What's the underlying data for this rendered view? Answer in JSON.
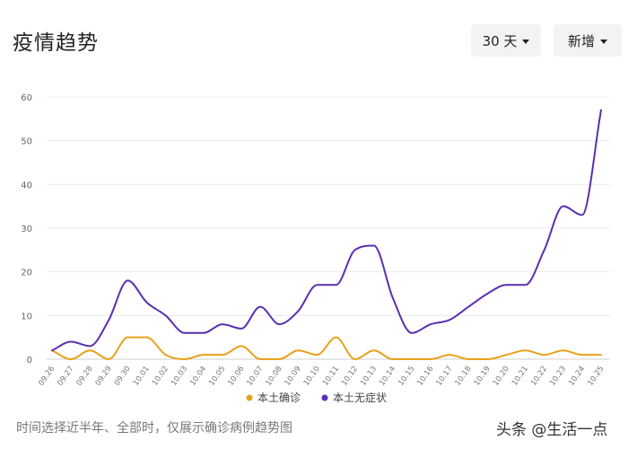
{
  "header": {
    "title": "疫情趋势",
    "days_select": "30 天",
    "metric_select": "新增"
  },
  "footnote": "时间选择近半年、全部时，仅展示确诊病例趋势图",
  "watermark": "头条 @生活一点",
  "colors": {
    "confirmed": "#e8a21c",
    "asymptomatic": "#5a2fb0"
  },
  "chart_data": {
    "type": "line",
    "x": [
      "09.26",
      "09.27",
      "09.28",
      "09.29",
      "09.30",
      "10.01",
      "10.02",
      "10.03",
      "10.04",
      "10.05",
      "10.06",
      "10.07",
      "10.08",
      "10.09",
      "10.10",
      "10.11",
      "10.12",
      "10.13",
      "10.14",
      "10.15",
      "10.16",
      "10.17",
      "10.18",
      "10.19",
      "10.20",
      "10.21",
      "10.22",
      "10.23",
      "10.24",
      "10.25"
    ],
    "ylim": [
      0,
      60
    ],
    "yticks": [
      0,
      10,
      20,
      30,
      40,
      50,
      60
    ],
    "grid": true,
    "legend": "bottom",
    "series": [
      {
        "name": "本土确诊",
        "color": "#e8a21c",
        "values": [
          2,
          0,
          2,
          0,
          5,
          5,
          1,
          0,
          1,
          1,
          3,
          0,
          0,
          2,
          1,
          5,
          0,
          2,
          0,
          0,
          0,
          1,
          0,
          0,
          1,
          2,
          1,
          2,
          1,
          1
        ]
      },
      {
        "name": "本土无症状",
        "color": "#5a2fb0",
        "values": [
          2,
          4,
          3,
          9,
          18,
          13,
          10,
          6,
          6,
          8,
          7,
          12,
          8,
          11,
          17,
          17,
          25,
          26,
          14,
          6,
          8,
          9,
          12,
          15,
          17,
          17,
          25,
          35,
          33,
          57
        ]
      }
    ]
  }
}
